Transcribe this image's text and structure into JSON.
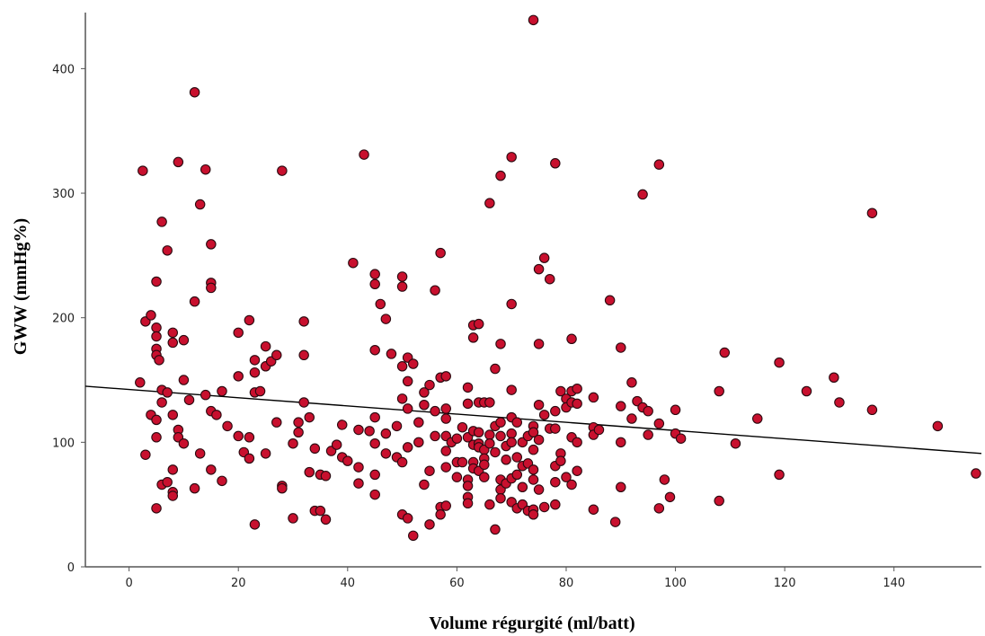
{
  "chart_data": {
    "type": "scatter",
    "title": "",
    "xlabel": "Volume régurgité (ml/batt)",
    "ylabel": "GWW (mmHg%)",
    "xlim": [
      -8,
      156
    ],
    "ylim": [
      0,
      445
    ],
    "xticks": [
      0,
      20,
      40,
      60,
      80,
      100,
      120,
      140
    ],
    "yticks": [
      0,
      100,
      200,
      300,
      400
    ],
    "grid": false,
    "marker_color": "#c8102e",
    "marker_edge_color": "#2a0a10",
    "fit_line": {
      "x": [
        -8,
        156
      ],
      "y": [
        145,
        91
      ]
    },
    "series": [
      {
        "points": [
          [
            2,
            148
          ],
          [
            2.5,
            318
          ],
          [
            3,
            197
          ],
          [
            3,
            90
          ],
          [
            4,
            202
          ],
          [
            4,
            122
          ],
          [
            5,
            118
          ],
          [
            5,
            104
          ],
          [
            5,
            47
          ],
          [
            5,
            229
          ],
          [
            5,
            192
          ],
          [
            5,
            185
          ],
          [
            5,
            175
          ],
          [
            5,
            170
          ],
          [
            5.5,
            166
          ],
          [
            6,
            142
          ],
          [
            6,
            132
          ],
          [
            6,
            66
          ],
          [
            6,
            277
          ],
          [
            7,
            254
          ],
          [
            7,
            140
          ],
          [
            7,
            68
          ],
          [
            8,
            188
          ],
          [
            8,
            180
          ],
          [
            8,
            122
          ],
          [
            8,
            78
          ],
          [
            8,
            60
          ],
          [
            8,
            57
          ],
          [
            9,
            325
          ],
          [
            9,
            110
          ],
          [
            9,
            104
          ],
          [
            10,
            182
          ],
          [
            10,
            150
          ],
          [
            10,
            99
          ],
          [
            11,
            134
          ],
          [
            12,
            381
          ],
          [
            12,
            213
          ],
          [
            12,
            63
          ],
          [
            13,
            291
          ],
          [
            13,
            91
          ],
          [
            14,
            319
          ],
          [
            14,
            138
          ],
          [
            15,
            259
          ],
          [
            15,
            228
          ],
          [
            15,
            224
          ],
          [
            15,
            125
          ],
          [
            15,
            78
          ],
          [
            16,
            122
          ],
          [
            17,
            141
          ],
          [
            17,
            69
          ],
          [
            18,
            113
          ],
          [
            20,
            188
          ],
          [
            20,
            153
          ],
          [
            20,
            105
          ],
          [
            21,
            92
          ],
          [
            22,
            198
          ],
          [
            22,
            104
          ],
          [
            22,
            87
          ],
          [
            23,
            166
          ],
          [
            23,
            156
          ],
          [
            23,
            140
          ],
          [
            23,
            34
          ],
          [
            24,
            141
          ],
          [
            25,
            177
          ],
          [
            25,
            161
          ],
          [
            25,
            91
          ],
          [
            26,
            165
          ],
          [
            27,
            170
          ],
          [
            27,
            116
          ],
          [
            28,
            318
          ],
          [
            28,
            65
          ],
          [
            28,
            63
          ],
          [
            30,
            99
          ],
          [
            30,
            39
          ],
          [
            31,
            116
          ],
          [
            31,
            108
          ],
          [
            32,
            197
          ],
          [
            32,
            170
          ],
          [
            32,
            132
          ],
          [
            33,
            76
          ],
          [
            33,
            120
          ],
          [
            34,
            95
          ],
          [
            34,
            45
          ],
          [
            35,
            74
          ],
          [
            35,
            45
          ],
          [
            36,
            73
          ],
          [
            36,
            38
          ],
          [
            37,
            93
          ],
          [
            38,
            98
          ],
          [
            39,
            114
          ],
          [
            39,
            88
          ],
          [
            40,
            85
          ],
          [
            41,
            244
          ],
          [
            42,
            110
          ],
          [
            42,
            67
          ],
          [
            42,
            80
          ],
          [
            43,
            331
          ],
          [
            44,
            109
          ],
          [
            45,
            235
          ],
          [
            45,
            227
          ],
          [
            45,
            174
          ],
          [
            45,
            120
          ],
          [
            45,
            99
          ],
          [
            45,
            74
          ],
          [
            45,
            58
          ],
          [
            46,
            211
          ],
          [
            47,
            199
          ],
          [
            47,
            107
          ],
          [
            47,
            91
          ],
          [
            48,
            171
          ],
          [
            49,
            113
          ],
          [
            49,
            88
          ],
          [
            50,
            233
          ],
          [
            50,
            225
          ],
          [
            50,
            161
          ],
          [
            50,
            135
          ],
          [
            50,
            84
          ],
          [
            50,
            42
          ],
          [
            51,
            168
          ],
          [
            51,
            149
          ],
          [
            51,
            127
          ],
          [
            51,
            96
          ],
          [
            51,
            39
          ],
          [
            52,
            163
          ],
          [
            52,
            25
          ],
          [
            53,
            116
          ],
          [
            53,
            100
          ],
          [
            54,
            130
          ],
          [
            54,
            140
          ],
          [
            54,
            66
          ],
          [
            55,
            146
          ],
          [
            55,
            77
          ],
          [
            55,
            34
          ],
          [
            56,
            222
          ],
          [
            56,
            125
          ],
          [
            56,
            105
          ],
          [
            57,
            252
          ],
          [
            57,
            152
          ],
          [
            57,
            48
          ],
          [
            57,
            42
          ],
          [
            58,
            153
          ],
          [
            58,
            127
          ],
          [
            58,
            119
          ],
          [
            58,
            105
          ],
          [
            58,
            93
          ],
          [
            58,
            80
          ],
          [
            58,
            49
          ],
          [
            59,
            100
          ],
          [
            60,
            103
          ],
          [
            60,
            84
          ],
          [
            60,
            72
          ],
          [
            61,
            112
          ],
          [
            61,
            84
          ],
          [
            62,
            144
          ],
          [
            62,
            131
          ],
          [
            62,
            104
          ],
          [
            62,
            70
          ],
          [
            62,
            65
          ],
          [
            62,
            56
          ],
          [
            62,
            51
          ],
          [
            63,
            194
          ],
          [
            63,
            184
          ],
          [
            63,
            109
          ],
          [
            63,
            98
          ],
          [
            63,
            84
          ],
          [
            63,
            79
          ],
          [
            64,
            195
          ],
          [
            64,
            132
          ],
          [
            64,
            108
          ],
          [
            64,
            99
          ],
          [
            64,
            96
          ],
          [
            64,
            77
          ],
          [
            65,
            132
          ],
          [
            65,
            94
          ],
          [
            65,
            87
          ],
          [
            65,
            82
          ],
          [
            65,
            72
          ],
          [
            66,
            292
          ],
          [
            66,
            132
          ],
          [
            66,
            106
          ],
          [
            66,
            99
          ],
          [
            66,
            50
          ],
          [
            67,
            159
          ],
          [
            67,
            113
          ],
          [
            67,
            92
          ],
          [
            67,
            30
          ],
          [
            68,
            314
          ],
          [
            68,
            179
          ],
          [
            68,
            116
          ],
          [
            68,
            105
          ],
          [
            68,
            70
          ],
          [
            68,
            62
          ],
          [
            68,
            55
          ],
          [
            69,
            97
          ],
          [
            69,
            86
          ],
          [
            69,
            67
          ],
          [
            70,
            329
          ],
          [
            70,
            211
          ],
          [
            70,
            142
          ],
          [
            70,
            120
          ],
          [
            70,
            107
          ],
          [
            70,
            100
          ],
          [
            70,
            71
          ],
          [
            70,
            52
          ],
          [
            71,
            116
          ],
          [
            71,
            88
          ],
          [
            71,
            74
          ],
          [
            71,
            47
          ],
          [
            72,
            100
          ],
          [
            72,
            81
          ],
          [
            72,
            64
          ],
          [
            72,
            50
          ],
          [
            73,
            105
          ],
          [
            73,
            83
          ],
          [
            73,
            45
          ],
          [
            74,
            439
          ],
          [
            74,
            113
          ],
          [
            74,
            108
          ],
          [
            74,
            94
          ],
          [
            74,
            78
          ],
          [
            74,
            70
          ],
          [
            74,
            46
          ],
          [
            74,
            42
          ],
          [
            75,
            239
          ],
          [
            75,
            179
          ],
          [
            75,
            130
          ],
          [
            75,
            102
          ],
          [
            75,
            62
          ],
          [
            76,
            248
          ],
          [
            76,
            122
          ],
          [
            76,
            48
          ],
          [
            77,
            231
          ],
          [
            77,
            111
          ],
          [
            78,
            324
          ],
          [
            78,
            125
          ],
          [
            78,
            111
          ],
          [
            78,
            81
          ],
          [
            78,
            68
          ],
          [
            78,
            50
          ],
          [
            79,
            141
          ],
          [
            79,
            91
          ],
          [
            79,
            85
          ],
          [
            80,
            135
          ],
          [
            80,
            128
          ],
          [
            80,
            72
          ],
          [
            81,
            183
          ],
          [
            81,
            141
          ],
          [
            81,
            132
          ],
          [
            81,
            104
          ],
          [
            81,
            66
          ],
          [
            82,
            143
          ],
          [
            82,
            131
          ],
          [
            82,
            100
          ],
          [
            82,
            77
          ],
          [
            85,
            136
          ],
          [
            85,
            112
          ],
          [
            85,
            106
          ],
          [
            85,
            46
          ],
          [
            86,
            110
          ],
          [
            88,
            214
          ],
          [
            89,
            36
          ],
          [
            90,
            176
          ],
          [
            90,
            129
          ],
          [
            90,
            100
          ],
          [
            90,
            64
          ],
          [
            92,
            148
          ],
          [
            92,
            119
          ],
          [
            93,
            133
          ],
          [
            94,
            299
          ],
          [
            94,
            128
          ],
          [
            95,
            125
          ],
          [
            95,
            106
          ],
          [
            97,
            323
          ],
          [
            97,
            115
          ],
          [
            97,
            47
          ],
          [
            98,
            70
          ],
          [
            99,
            56
          ],
          [
            100,
            126
          ],
          [
            100,
            107
          ],
          [
            101,
            103
          ],
          [
            108,
            141
          ],
          [
            108,
            53
          ],
          [
            109,
            172
          ],
          [
            111,
            99
          ],
          [
            115,
            119
          ],
          [
            119,
            164
          ],
          [
            119,
            74
          ],
          [
            124,
            141
          ],
          [
            129,
            152
          ],
          [
            130,
            132
          ],
          [
            136,
            284
          ],
          [
            136,
            126
          ],
          [
            148,
            113
          ],
          [
            155,
            75
          ]
        ]
      }
    ]
  }
}
